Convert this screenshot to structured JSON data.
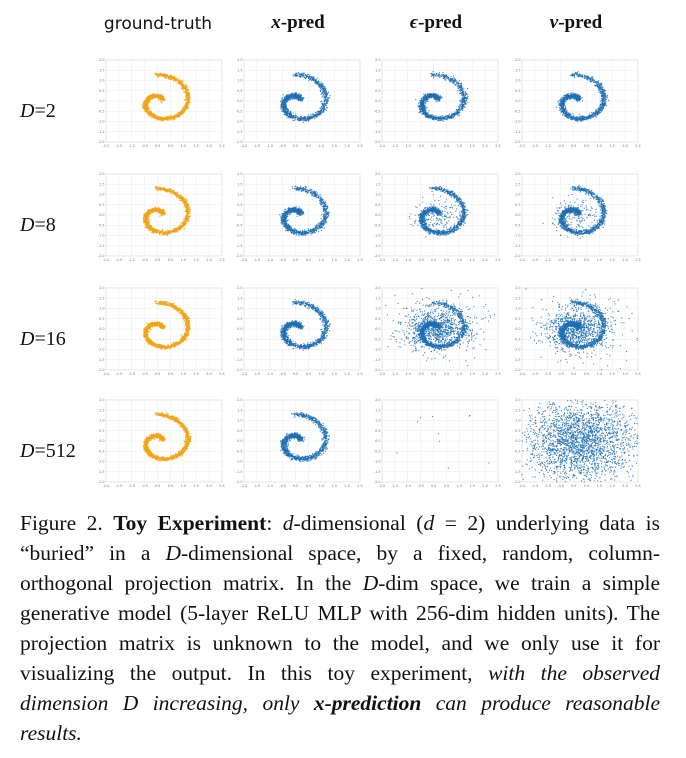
{
  "columns": [
    {
      "key": "gt",
      "label": "ground-truth"
    },
    {
      "key": "x",
      "symbol": "x",
      "suffix": "-pred"
    },
    {
      "key": "eps",
      "symbol": "ϵ",
      "suffix": "-pred"
    },
    {
      "key": "v",
      "symbol": "v",
      "suffix": "-pred"
    }
  ],
  "rows": [
    {
      "var": "D",
      "eq": "=",
      "value": "2"
    },
    {
      "var": "D",
      "eq": "=",
      "value": "8"
    },
    {
      "var": "D",
      "eq": "=",
      "value": "16"
    },
    {
      "var": "D",
      "eq": "=",
      "value": "512"
    }
  ],
  "panel_styles": {
    "gt": {
      "color": "#f2a51a"
    },
    "pred": {
      "color": "#1f6fb4"
    }
  },
  "chart_data": {
    "type": "scatter",
    "xlim": [
      -2.0,
      2.5
    ],
    "ylim": [
      -2.0,
      2.0
    ],
    "x_ticks": [
      "-2.0",
      "-1.5",
      "-1.0",
      "-0.5",
      "0.0",
      "0.5",
      "1.0",
      "1.5",
      "2.0",
      "2.5"
    ],
    "y_ticks": [
      "2.0",
      "1.5",
      "1.0",
      "0.5",
      "0.0",
      "-0.5",
      "-1.0",
      "-1.5",
      "-2.0"
    ],
    "grid": true,
    "panels": [
      {
        "row": "D=2",
        "col": "ground-truth",
        "pattern": "spiral"
      },
      {
        "row": "D=2",
        "col": "x-pred",
        "pattern": "spiral"
      },
      {
        "row": "D=2",
        "col": "ϵ-pred",
        "pattern": "spiral"
      },
      {
        "row": "D=2",
        "col": "v-pred",
        "pattern": "spiral"
      },
      {
        "row": "D=8",
        "col": "ground-truth",
        "pattern": "spiral"
      },
      {
        "row": "D=8",
        "col": "x-pred",
        "pattern": "spiral"
      },
      {
        "row": "D=8",
        "col": "ϵ-pred",
        "pattern": "spiral, slightly noisy"
      },
      {
        "row": "D=8",
        "col": "v-pred",
        "pattern": "spiral, slightly noisy"
      },
      {
        "row": "D=16",
        "col": "ground-truth",
        "pattern": "spiral"
      },
      {
        "row": "D=16",
        "col": "x-pred",
        "pattern": "spiral"
      },
      {
        "row": "D=16",
        "col": "ϵ-pred",
        "pattern": "spiral, heavily noisy center"
      },
      {
        "row": "D=16",
        "col": "v-pred",
        "pattern": "spiral, heavily noisy center"
      },
      {
        "row": "D=512",
        "col": "ground-truth",
        "pattern": "spiral"
      },
      {
        "row": "D=512",
        "col": "x-pred",
        "pattern": "spiral"
      },
      {
        "row": "D=512",
        "col": "ϵ-pred",
        "pattern": "few scattered points"
      },
      {
        "row": "D=512",
        "col": "v-pred",
        "pattern": "dense uniform noise"
      }
    ]
  },
  "caption": {
    "label": "Figure 2.",
    "title": "Toy Experiment",
    "part1a": ": ",
    "d_var": "d",
    "part1b": "-dimensional (",
    "d_var2": "d",
    "part1c": " = 2) underlying data is “buried” in a ",
    "D_var": "D",
    "part1d": "-dimensional space, by a fixed, random, column-orthogonal projection matrix. In the ",
    "D_var2": "D",
    "part2": "-dim space, we train a simple generative model (5-layer ReLU MLP with 256-dim hidden units). The projection matrix is unknown to the model, and we only use it for visualizing the output. In this toy experiment, ",
    "em1": "with the observed dimension D increasing, only ",
    "em_bold": "x-prediction",
    "em2": " can produce reasonable results."
  }
}
